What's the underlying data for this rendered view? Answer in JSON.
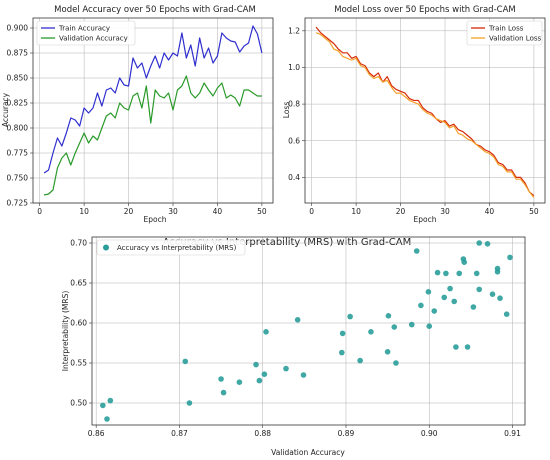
{
  "chart_data": [
    {
      "id": "acc",
      "type": "line",
      "title": "Model Accuracy over 50 Epochs with Grad-CAM",
      "xlabel": "Epoch",
      "ylabel": "Accuracy",
      "xlim": [
        -1.5,
        52.5
      ],
      "ylim": [
        0.725,
        0.91
      ],
      "xticks": [
        0,
        10,
        20,
        30,
        40,
        50
      ],
      "yticks": [
        0.725,
        0.75,
        0.775,
        0.8,
        0.825,
        0.85,
        0.875,
        0.9
      ],
      "ytick_labels": [
        "0.725",
        "0.750",
        "0.775",
        "0.800",
        "0.825",
        "0.850",
        "0.875",
        "0.900"
      ],
      "grid": true,
      "legend": "top-left",
      "x": [
        1,
        2,
        3,
        4,
        5,
        6,
        7,
        8,
        9,
        10,
        11,
        12,
        13,
        14,
        15,
        16,
        17,
        18,
        19,
        20,
        21,
        22,
        23,
        24,
        25,
        26,
        27,
        28,
        29,
        30,
        31,
        32,
        33,
        34,
        35,
        36,
        37,
        38,
        39,
        40,
        41,
        42,
        43,
        44,
        45,
        46,
        47,
        48,
        49,
        50
      ],
      "series": [
        {
          "name": "Train Accuracy",
          "color": "#2f2fcf",
          "values": [
            0.755,
            0.758,
            0.775,
            0.79,
            0.782,
            0.795,
            0.81,
            0.808,
            0.802,
            0.82,
            0.815,
            0.82,
            0.835,
            0.822,
            0.838,
            0.84,
            0.835,
            0.85,
            0.843,
            0.842,
            0.87,
            0.86,
            0.865,
            0.85,
            0.862,
            0.872,
            0.86,
            0.875,
            0.868,
            0.875,
            0.872,
            0.895,
            0.87,
            0.883,
            0.862,
            0.89,
            0.87,
            0.88,
            0.865,
            0.872,
            0.895,
            0.89,
            0.887,
            0.886,
            0.876,
            0.882,
            0.885,
            0.902,
            0.894,
            0.875
          ]
        },
        {
          "name": "Validation Accuracy",
          "color": "#2a9a2a",
          "values": [
            0.733,
            0.734,
            0.738,
            0.76,
            0.77,
            0.775,
            0.763,
            0.775,
            0.785,
            0.795,
            0.785,
            0.792,
            0.788,
            0.8,
            0.812,
            0.815,
            0.81,
            0.825,
            0.82,
            0.818,
            0.832,
            0.835,
            0.82,
            0.842,
            0.805,
            0.838,
            0.832,
            0.83,
            0.835,
            0.818,
            0.838,
            0.842,
            0.852,
            0.835,
            0.83,
            0.835,
            0.845,
            0.838,
            0.832,
            0.84,
            0.845,
            0.83,
            0.833,
            0.83,
            0.822,
            0.838,
            0.838,
            0.835,
            0.832,
            0.832
          ]
        }
      ]
    },
    {
      "id": "loss",
      "type": "line",
      "title": "Model Loss over 50 Epochs with Grad-CAM",
      "xlabel": "Epoch",
      "ylabel": "Loss",
      "xlim": [
        -1.5,
        52.5
      ],
      "ylim": [
        0.26,
        1.27
      ],
      "xticks": [
        0,
        10,
        20,
        30,
        40,
        50
      ],
      "yticks": [
        0.4,
        0.6,
        0.8,
        1.0,
        1.2
      ],
      "ytick_labels": [
        "0.4",
        "0.6",
        "0.8",
        "1.0",
        "1.2"
      ],
      "grid": true,
      "legend": "top-right",
      "x": [
        1,
        2,
        3,
        4,
        5,
        6,
        7,
        8,
        9,
        10,
        11,
        12,
        13,
        14,
        15,
        16,
        17,
        18,
        19,
        20,
        21,
        22,
        23,
        24,
        25,
        26,
        27,
        28,
        29,
        30,
        31,
        32,
        33,
        34,
        35,
        36,
        37,
        38,
        39,
        40,
        41,
        42,
        43,
        44,
        45,
        46,
        47,
        48,
        49,
        50
      ],
      "series": [
        {
          "name": "Train Loss",
          "color": "#d62a0a",
          "values": [
            1.22,
            1.19,
            1.17,
            1.15,
            1.13,
            1.1,
            1.08,
            1.08,
            1.05,
            1.06,
            1.02,
            1.01,
            0.97,
            0.95,
            0.97,
            0.92,
            0.95,
            0.9,
            0.88,
            0.87,
            0.86,
            0.83,
            0.82,
            0.82,
            0.78,
            0.76,
            0.75,
            0.72,
            0.7,
            0.71,
            0.68,
            0.69,
            0.66,
            0.65,
            0.63,
            0.61,
            0.58,
            0.57,
            0.55,
            0.54,
            0.52,
            0.48,
            0.47,
            0.44,
            0.44,
            0.4,
            0.4,
            0.37,
            0.32,
            0.3
          ]
        },
        {
          "name": "Validation Loss",
          "color": "#f5a12a",
          "values": [
            1.19,
            1.18,
            1.16,
            1.14,
            1.1,
            1.09,
            1.06,
            1.05,
            1.04,
            1.05,
            1.01,
            1.0,
            0.96,
            0.94,
            0.95,
            0.92,
            0.93,
            0.89,
            0.86,
            0.86,
            0.84,
            0.82,
            0.81,
            0.8,
            0.77,
            0.75,
            0.74,
            0.72,
            0.71,
            0.7,
            0.67,
            0.68,
            0.64,
            0.63,
            0.61,
            0.6,
            0.58,
            0.56,
            0.54,
            0.53,
            0.51,
            0.47,
            0.46,
            0.43,
            0.43,
            0.39,
            0.39,
            0.36,
            0.32,
            0.29
          ]
        }
      ]
    },
    {
      "id": "mrs",
      "type": "scatter",
      "title": "Accuracy vs Interpretability (MRS) with Grad-CAM",
      "xlabel": "Validation Accuracy",
      "ylabel": "Interpretability (MRS)",
      "xlim": [
        0.8595,
        0.9115
      ],
      "ylim": [
        0.4725,
        0.7075
      ],
      "xticks": [
        0.86,
        0.87,
        0.88,
        0.89,
        0.9,
        0.91
      ],
      "xtick_labels": [
        "0.86",
        "0.87",
        "0.88",
        "0.89",
        "0.90",
        "0.91"
      ],
      "yticks": [
        0.5,
        0.55,
        0.6,
        0.65,
        0.7
      ],
      "ytick_labels": [
        "0.50",
        "0.55",
        "0.60",
        "0.65",
        "0.70"
      ],
      "grid": true,
      "legend": "top-left",
      "series": [
        {
          "name": "Accuracy vs Interpretability (MRS)",
          "color": "#2a9d9a",
          "points": [
            [
              0.8608,
              0.497
            ],
            [
              0.8617,
              0.503
            ],
            [
              0.8613,
              0.48
            ],
            [
              0.8707,
              0.552
            ],
            [
              0.8712,
              0.5
            ],
            [
              0.875,
              0.53
            ],
            [
              0.8753,
              0.513
            ],
            [
              0.8772,
              0.526
            ],
            [
              0.8792,
              0.548
            ],
            [
              0.8796,
              0.528
            ],
            [
              0.8802,
              0.536
            ],
            [
              0.8804,
              0.589
            ],
            [
              0.8828,
              0.543
            ],
            [
              0.8842,
              0.604
            ],
            [
              0.8849,
              0.535
            ],
            [
              0.8895,
              0.563
            ],
            [
              0.8896,
              0.587
            ],
            [
              0.8905,
              0.608
            ],
            [
              0.8917,
              0.553
            ],
            [
              0.893,
              0.589
            ],
            [
              0.8951,
              0.609
            ],
            [
              0.8958,
              0.595
            ],
            [
              0.895,
              0.564
            ],
            [
              0.896,
              0.55
            ],
            [
              0.8979,
              0.598
            ],
            [
              0.899,
              0.622
            ],
            [
              0.8985,
              0.69
            ],
            [
              0.8999,
              0.639
            ],
            [
              0.9,
              0.596
            ],
            [
              0.9006,
              0.615
            ],
            [
              0.901,
              0.663
            ],
            [
              0.902,
              0.662
            ],
            [
              0.9018,
              0.632
            ],
            [
              0.9025,
              0.643
            ],
            [
              0.903,
              0.627
            ],
            [
              0.9032,
              0.57
            ],
            [
              0.9036,
              0.662
            ],
            [
              0.9041,
              0.68
            ],
            [
              0.9042,
              0.676
            ],
            [
              0.9046,
              0.57
            ],
            [
              0.9053,
              0.62
            ],
            [
              0.906,
              0.7
            ],
            [
              0.9057,
              0.662
            ],
            [
              0.906,
              0.642
            ],
            [
              0.907,
              0.699
            ],
            [
              0.9076,
              0.636
            ],
            [
              0.9082,
              0.668
            ],
            [
              0.9082,
              0.664
            ],
            [
              0.9085,
              0.631
            ],
            [
              0.9093,
              0.611
            ],
            [
              0.9097,
              0.682
            ]
          ]
        }
      ]
    }
  ]
}
